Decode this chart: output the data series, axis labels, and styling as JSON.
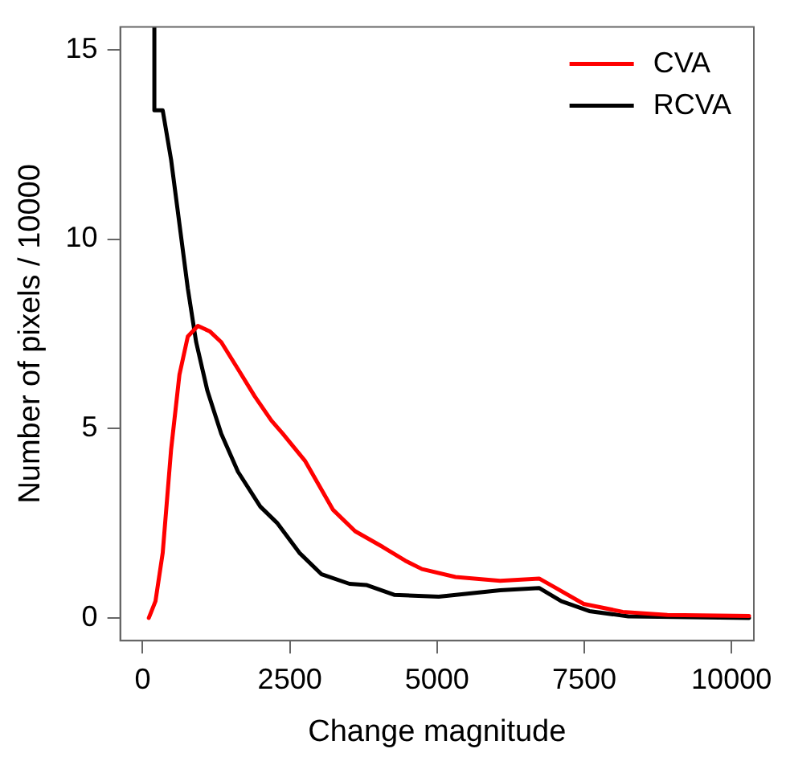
{
  "chart_data": {
    "type": "line",
    "xlabel": "Change magnitude",
    "ylabel": "Number of pixels / 10000",
    "xlim": [
      -380,
      10380
    ],
    "ylim": [
      -0.6,
      15.6
    ],
    "xticks": [
      0,
      2500,
      5000,
      7500,
      10000
    ],
    "yticks": [
      0,
      5,
      10,
      15
    ],
    "grid": false,
    "legend": "top right",
    "marker": "none",
    "line_style": "solid",
    "series": [
      {
        "name": "CVA",
        "color": "#ff0000",
        "x": [
          105,
          218,
          341,
          483,
          625,
          767,
          938,
          1145,
          1335,
          1619,
          1903,
          2187,
          2377,
          2756,
          3230,
          3608,
          4082,
          4460,
          4744,
          5313,
          6071,
          6733,
          7017,
          7490,
          8153,
          8911,
          10300
        ],
        "values": [
          0,
          0.44,
          1.72,
          4.44,
          6.42,
          7.43,
          7.71,
          7.56,
          7.28,
          6.57,
          5.85,
          5.21,
          4.87,
          4.15,
          2.86,
          2.29,
          1.87,
          1.51,
          1.29,
          1.08,
          0.98,
          1.04,
          0.79,
          0.37,
          0.16,
          0.08,
          0.05
        ]
      },
      {
        "name": "RCVA",
        "color": "#000000",
        "x": [
          199,
          199,
          341,
          483,
          625,
          767,
          909,
          1099,
          1335,
          1619,
          1998,
          2282,
          2661,
          3040,
          3513,
          3797,
          4271,
          5028,
          6071,
          6733,
          7111,
          7585,
          8248,
          10300
        ],
        "values": [
          15.6,
          13.4,
          13.4,
          12.1,
          10.4,
          8.7,
          7.28,
          6.0,
          4.86,
          3.86,
          2.94,
          2.51,
          1.72,
          1.15,
          0.9,
          0.87,
          0.61,
          0.56,
          0.73,
          0.79,
          0.44,
          0.18,
          0.04,
          0
        ]
      }
    ]
  }
}
